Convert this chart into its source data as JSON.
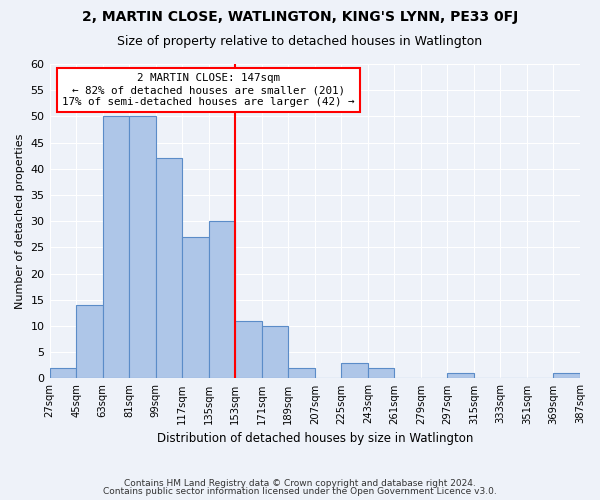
{
  "title": "2, MARTIN CLOSE, WATLINGTON, KING'S LYNN, PE33 0FJ",
  "subtitle": "Size of property relative to detached houses in Watlington",
  "xlabel": "Distribution of detached houses by size in Watlington",
  "ylabel": "Number of detached properties",
  "tick_labels": [
    "27sqm",
    "45sqm",
    "63sqm",
    "81sqm",
    "99sqm",
    "117sqm",
    "135sqm",
    "153sqm",
    "171sqm",
    "189sqm",
    "207sqm",
    "225sqm",
    "243sqm",
    "261sqm",
    "279sqm",
    "297sqm",
    "315sqm",
    "333sqm",
    "351sqm",
    "369sqm",
    "387sqm"
  ],
  "values": [
    2,
    14,
    50,
    50,
    42,
    27,
    30,
    11,
    10,
    2,
    0,
    3,
    2,
    0,
    0,
    1,
    0,
    0,
    0,
    1
  ],
  "bar_color": "#aec6e8",
  "bar_edge_color": "#5b8cc8",
  "marker_bin_index": 6.5,
  "annotation_text": "2 MARTIN CLOSE: 147sqm\n← 82% of detached houses are smaller (201)\n17% of semi-detached houses are larger (42) →",
  "annotation_box_color": "white",
  "annotation_box_edge_color": "red",
  "marker_line_color": "red",
  "ylim": [
    0,
    60
  ],
  "yticks": [
    0,
    5,
    10,
    15,
    20,
    25,
    30,
    35,
    40,
    45,
    50,
    55,
    60
  ],
  "footer1": "Contains HM Land Registry data © Crown copyright and database right 2024.",
  "footer2": "Contains public sector information licensed under the Open Government Licence v3.0.",
  "bg_color": "#eef2f9",
  "plot_bg_color": "#eef2f9",
  "grid_color": "#ffffff"
}
